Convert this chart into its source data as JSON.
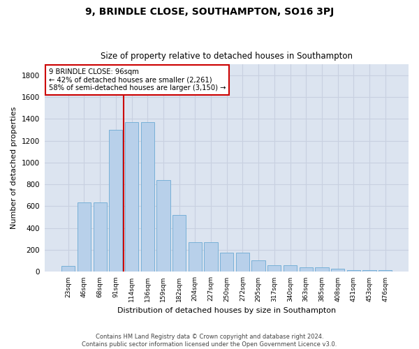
{
  "title": "9, BRINDLE CLOSE, SOUTHAMPTON, SO16 3PJ",
  "subtitle": "Size of property relative to detached houses in Southampton",
  "xlabel": "Distribution of detached houses by size in Southampton",
  "ylabel": "Number of detached properties",
  "footer_line1": "Contains HM Land Registry data © Crown copyright and database right 2024.",
  "footer_line2": "Contains public sector information licensed under the Open Government Licence v3.0.",
  "categories": [
    "23sqm",
    "46sqm",
    "68sqm",
    "91sqm",
    "114sqm",
    "136sqm",
    "159sqm",
    "182sqm",
    "204sqm",
    "227sqm",
    "250sqm",
    "272sqm",
    "295sqm",
    "317sqm",
    "340sqm",
    "363sqm",
    "385sqm",
    "408sqm",
    "431sqm",
    "453sqm",
    "476sqm"
  ],
  "values": [
    50,
    635,
    635,
    1300,
    1370,
    1370,
    840,
    520,
    270,
    270,
    175,
    175,
    105,
    60,
    55,
    37,
    37,
    28,
    15,
    10,
    10
  ],
  "bar_color": "#b8d0ea",
  "bar_edge_color": "#6baad4",
  "grid_color": "#c8d0e0",
  "bg_color": "#dce4f0",
  "annotation_box_color": "#cc0000",
  "vline_color": "#cc0000",
  "vline_position": 3.5,
  "annotation_text_line1": "9 BRINDLE CLOSE: 96sqm",
  "annotation_text_line2": "← 42% of detached houses are smaller (2,261)",
  "annotation_text_line3": "58% of semi-detached houses are larger (3,150) →",
  "ylim": [
    0,
    1900
  ],
  "yticks": [
    0,
    200,
    400,
    600,
    800,
    1000,
    1200,
    1400,
    1600,
    1800
  ]
}
